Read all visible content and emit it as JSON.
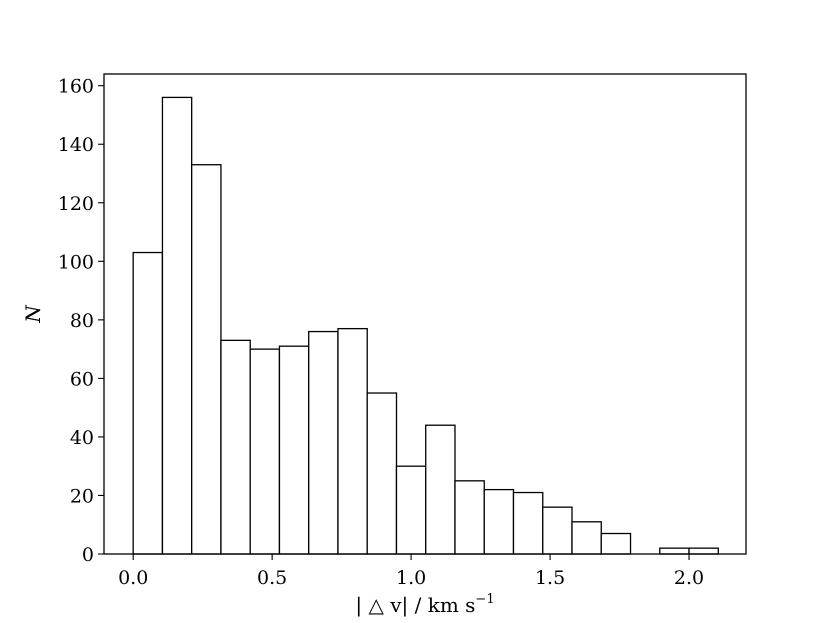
{
  "chart_data": {
    "type": "bar",
    "title": "",
    "xlabel": "| △ v| / km s",
    "xlabel_superscript": "−1",
    "ylabel": "N",
    "xlim": [
      -0.105,
      2.205
    ],
    "ylim": [
      0,
      164
    ],
    "grid": false,
    "bin_width": 0.1053,
    "bins": [
      {
        "x0": 0.0,
        "x1": 0.1053,
        "value": 103
      },
      {
        "x0": 0.1053,
        "x1": 0.2105,
        "value": 156
      },
      {
        "x0": 0.2105,
        "x1": 0.3158,
        "value": 133
      },
      {
        "x0": 0.3158,
        "x1": 0.4211,
        "value": 73
      },
      {
        "x0": 0.4211,
        "x1": 0.5263,
        "value": 70
      },
      {
        "x0": 0.5263,
        "x1": 0.6316,
        "value": 71
      },
      {
        "x0": 0.6316,
        "x1": 0.7368,
        "value": 76
      },
      {
        "x0": 0.7368,
        "x1": 0.8421,
        "value": 77
      },
      {
        "x0": 0.8421,
        "x1": 0.9474,
        "value": 55
      },
      {
        "x0": 0.9474,
        "x1": 1.0526,
        "value": 30
      },
      {
        "x0": 1.0526,
        "x1": 1.1579,
        "value": 44
      },
      {
        "x0": 1.1579,
        "x1": 1.2632,
        "value": 25
      },
      {
        "x0": 1.2632,
        "x1": 1.3684,
        "value": 22
      },
      {
        "x0": 1.3684,
        "x1": 1.4737,
        "value": 21
      },
      {
        "x0": 1.4737,
        "x1": 1.5789,
        "value": 16
      },
      {
        "x0": 1.5789,
        "x1": 1.6842,
        "value": 11
      },
      {
        "x0": 1.6842,
        "x1": 1.7895,
        "value": 7
      },
      {
        "x0": 1.7895,
        "x1": 1.8947,
        "value": 0
      },
      {
        "x0": 1.8947,
        "x1": 2.0,
        "value": 2
      },
      {
        "x0": 2.0,
        "x1": 2.1053,
        "value": 2
      }
    ],
    "x_ticks": [
      {
        "value": 0.0,
        "label": "0.0"
      },
      {
        "value": 0.5,
        "label": "0.5"
      },
      {
        "value": 1.0,
        "label": "1.0"
      },
      {
        "value": 1.5,
        "label": "1.5"
      },
      {
        "value": 2.0,
        "label": "2.0"
      }
    ],
    "y_ticks": [
      {
        "value": 0,
        "label": "0"
      },
      {
        "value": 20,
        "label": "20"
      },
      {
        "value": 40,
        "label": "40"
      },
      {
        "value": 60,
        "label": "60"
      },
      {
        "value": 80,
        "label": "80"
      },
      {
        "value": 100,
        "label": "100"
      },
      {
        "value": 120,
        "label": "120"
      },
      {
        "value": 140,
        "label": "140"
      },
      {
        "value": 160,
        "label": "160"
      }
    ],
    "bar_fill": "#ffffff",
    "bar_stroke": "#000000"
  }
}
